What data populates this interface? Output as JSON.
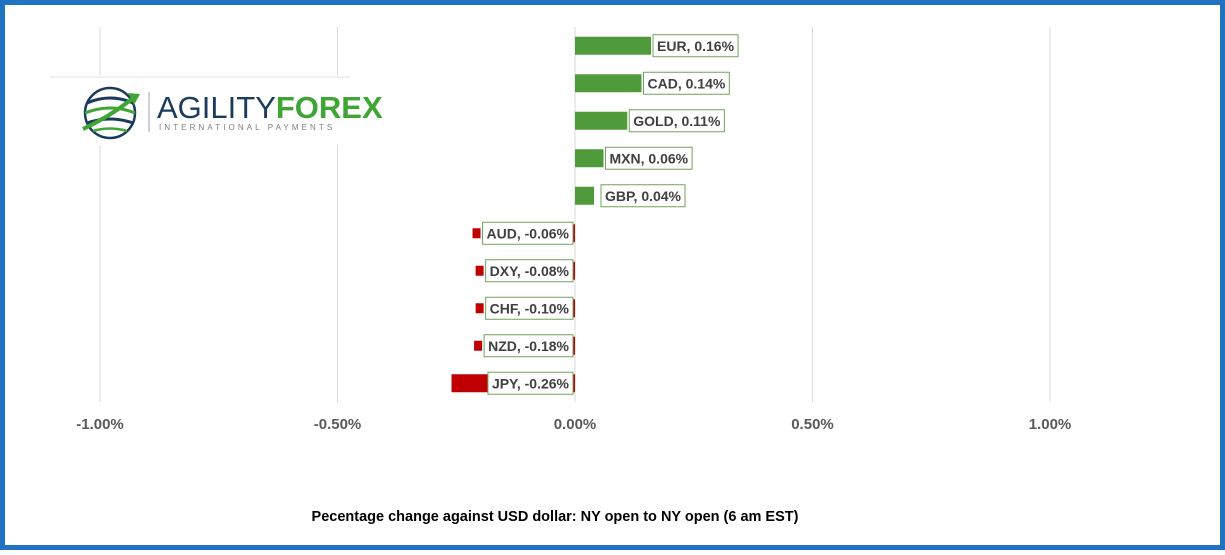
{
  "logo": {
    "word_a": "AGILITY",
    "word_b": "FOREX",
    "tagline": "INTERNATIONAL PAYMENTS",
    "colors": {
      "dark": "#1b3a5c",
      "green": "#3fa535"
    }
  },
  "chart_data": {
    "type": "bar",
    "orientation": "horizontal",
    "categories": [
      "EUR",
      "CAD",
      "GOLD",
      "MXN",
      "GBP",
      "AUD",
      "DXY",
      "CHF",
      "NZD",
      "JPY"
    ],
    "values": [
      0.16,
      0.14,
      0.11,
      0.06,
      0.04,
      -0.06,
      -0.08,
      -0.1,
      -0.18,
      -0.26
    ],
    "data_labels": [
      "EUR, 0.16%",
      "CAD, 0.14%",
      "GOLD, 0.11%",
      "MXN, 0.06%",
      "GBP, 0.04%",
      "AUD, -0.06%",
      "DXY, -0.08%",
      "CHF, -0.10%",
      "NZD, -0.18%",
      "JPY, -0.26%"
    ],
    "xlim": [
      -1.0,
      1.0
    ],
    "xticks": [
      -1.0,
      -0.5,
      0.0,
      0.5,
      1.0
    ],
    "xtick_labels": [
      "-1.00%",
      "-0.50%",
      "0.00%",
      "0.50%",
      "1.00%"
    ],
    "grid": "vertical",
    "colors": {
      "positive": "#4f9a3a",
      "negative": "#c00000",
      "grid": "#d9d9d9",
      "label_border": "#70a35c"
    },
    "xlabel": "Pecentage change against USD dollar: NY open to NY open (6 am EST)"
  }
}
